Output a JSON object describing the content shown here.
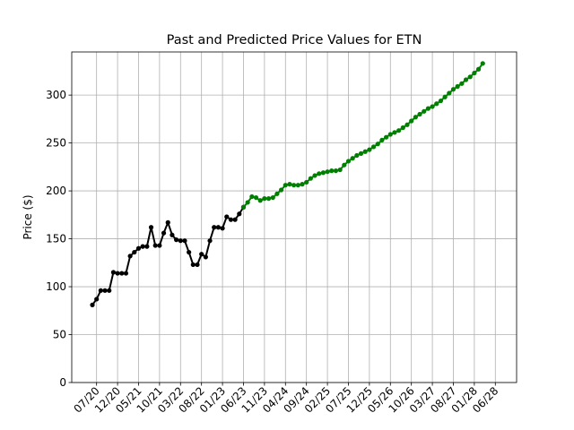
{
  "chart_data": {
    "type": "line",
    "title": "Past and Predicted Price Values for ETN",
    "xlabel": "",
    "ylabel": "Price ($)",
    "ylim": [
      0,
      345
    ],
    "y_ticks": [
      0,
      50,
      100,
      150,
      200,
      250,
      300
    ],
    "x_tick_labels": [
      "07/20",
      "12/20",
      "05/21",
      "10/21",
      "03/22",
      "08/22",
      "01/23",
      "06/23",
      "11/23",
      "04/24",
      "09/24",
      "02/25",
      "07/25",
      "12/25",
      "05/26",
      "10/26",
      "03/27",
      "08/27",
      "01/28",
      "06/28"
    ],
    "x_tick_index_step": 5,
    "x_tick_first_index": 1,
    "grid": true,
    "series": [
      {
        "color": "#000000",
        "start_index": 0,
        "values": [
          81,
          87,
          96,
          96,
          96,
          115,
          114,
          114,
          114,
          132,
          136,
          140,
          142,
          142,
          162,
          143,
          143,
          156,
          167,
          154,
          149,
          148,
          148,
          136,
          123,
          123,
          134,
          131,
          148,
          162,
          162,
          161,
          173,
          170,
          170,
          176,
          183
        ]
      },
      {
        "color": "#008000",
        "start_index": 36,
        "values": [
          183,
          188,
          194,
          193,
          190,
          192,
          192,
          193,
          197,
          201,
          206,
          207,
          206,
          206,
          207,
          209,
          213,
          216,
          218,
          219,
          220,
          221,
          221,
          222,
          227,
          231,
          234,
          237,
          239,
          241,
          243,
          246,
          249,
          253,
          256,
          259,
          261,
          263,
          266,
          269,
          273,
          277,
          280,
          283,
          286,
          288,
          291,
          294,
          298,
          302,
          306,
          309,
          312,
          316,
          319,
          323,
          327,
          333
        ]
      }
    ]
  }
}
